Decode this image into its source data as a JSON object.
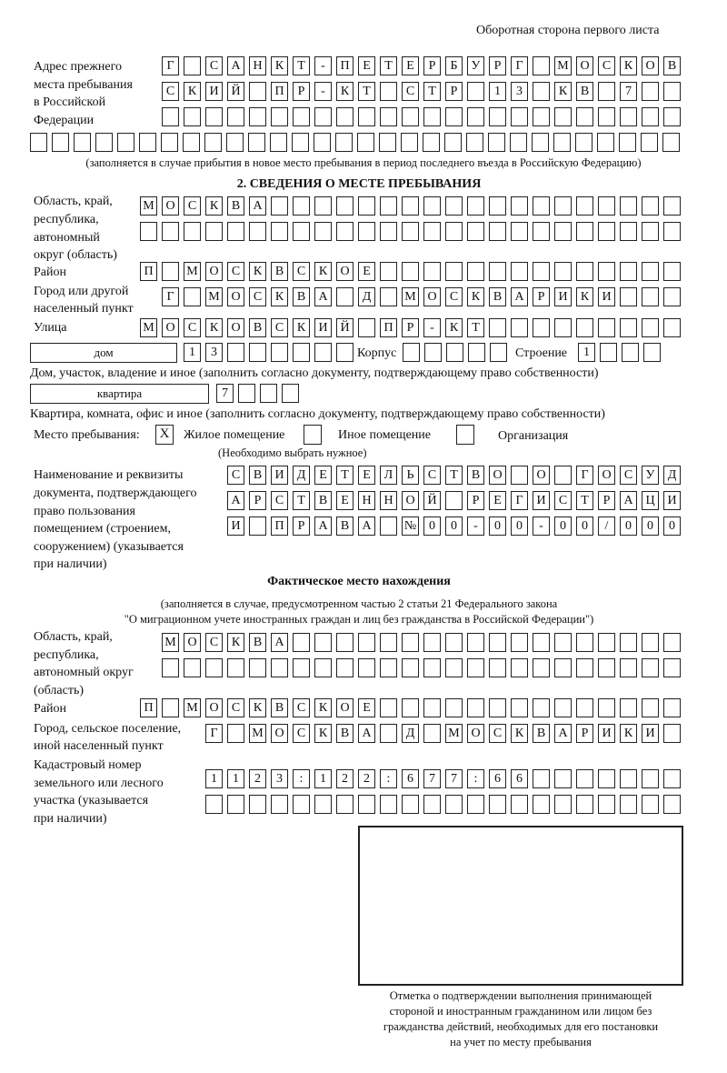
{
  "header": "Оборотная сторона первого листа",
  "prev_address": {
    "label": [
      "Адрес прежнего",
      "места пребывания",
      "в Российской",
      "Федерации"
    ],
    "rows": [
      [
        "Г",
        "",
        "С",
        "А",
        "Н",
        "К",
        "Т",
        "-",
        "П",
        "Е",
        "Т",
        "Е",
        "Р",
        "Б",
        "У",
        "Р",
        "Г",
        "",
        "М",
        "О",
        "С",
        "К",
        "О",
        "В"
      ],
      [
        "С",
        "К",
        "И",
        "Й",
        "",
        "П",
        "Р",
        "-",
        "К",
        "Т",
        "",
        "С",
        "Т",
        "Р",
        "",
        "1",
        "3",
        "",
        "К",
        "В",
        "",
        "7",
        "",
        ""
      ],
      [
        "",
        "",
        "",
        "",
        "",
        "",
        "",
        "",
        "",
        "",
        "",
        "",
        "",
        "",
        "",
        "",
        "",
        "",
        "",
        "",
        "",
        "",
        "",
        ""
      ],
      [
        "",
        "",
        "",
        "",
        "",
        "",
        "",
        "",
        "",
        "",
        "",
        "",
        "",
        "",
        "",
        "",
        "",
        "",
        "",
        "",
        "",
        "",
        "",
        "",
        "",
        "",
        "",
        "",
        "",
        ""
      ]
    ],
    "note": "(заполняется в случае прибытия в новое место пребывания в период последнего въезда в Российскую Федерацию)"
  },
  "section2": {
    "title": "2. СВЕДЕНИЯ О МЕСТЕ ПРЕБЫВАНИЯ",
    "region": {
      "label": [
        "Область, край,",
        "республика,",
        "автономный",
        "округ (область)"
      ],
      "rows": [
        [
          "М",
          "О",
          "С",
          "К",
          "В",
          "А",
          "",
          "",
          "",
          "",
          "",
          "",
          "",
          "",
          "",
          "",
          "",
          "",
          "",
          "",
          "",
          "",
          "",
          "",
          ""
        ],
        [
          "",
          "",
          "",
          "",
          "",
          "",
          "",
          "",
          "",
          "",
          "",
          "",
          "",
          "",
          "",
          "",
          "",
          "",
          "",
          "",
          "",
          "",
          "",
          "",
          ""
        ]
      ]
    },
    "district": {
      "label": "Район",
      "row": [
        "П",
        "",
        "М",
        "О",
        "С",
        "К",
        "В",
        "С",
        "К",
        "О",
        "Е",
        "",
        "",
        "",
        "",
        "",
        "",
        "",
        "",
        "",
        "",
        "",
        "",
        "",
        ""
      ]
    },
    "city": {
      "label": [
        "Город или другой",
        "населенный пункт"
      ],
      "row": [
        "Г",
        "",
        "М",
        "О",
        "С",
        "К",
        "В",
        "А",
        "",
        "Д",
        "",
        "М",
        "О",
        "С",
        "К",
        "В",
        "А",
        "Р",
        "И",
        "К",
        "И",
        "",
        "",
        ""
      ]
    },
    "street": {
      "label": "Улица",
      "row": [
        "М",
        "О",
        "С",
        "К",
        "О",
        "В",
        "С",
        "К",
        "И",
        "Й",
        "",
        "П",
        "Р",
        "-",
        "К",
        "Т",
        "",
        "",
        "",
        "",
        "",
        "",
        "",
        "",
        ""
      ]
    },
    "house": {
      "type": "дом",
      "row": [
        "1",
        "3",
        "",
        "",
        "",
        "",
        "",
        ""
      ],
      "korpus_label": "Корпус",
      "korpus": [
        "",
        "",
        "",
        "",
        ""
      ],
      "building_label": "Строение",
      "building": [
        "1",
        "",
        "",
        ""
      ],
      "note": "Дом, участок, владение и иное (заполнить согласно документу, подтверждающему право собственности)"
    },
    "apartment": {
      "type": "квартира",
      "row": [
        "7",
        "",
        "",
        ""
      ],
      "note": "Квартира, комната, офис и иное (заполнить согласно документу, подтверждающему право собственности)"
    },
    "stay_place": {
      "label": "Место пребывания:",
      "options": [
        {
          "label": "Жилое помещение",
          "mark": "X"
        },
        {
          "label": "Иное помещение",
          "mark": ""
        },
        {
          "label": "Организация",
          "mark": ""
        }
      ],
      "hint": "(Необходимо выбрать нужное)"
    },
    "document": {
      "label": [
        "Наименование и реквизиты",
        "документа, подтверждающего",
        "право пользования",
        "помещением (строением,",
        "сооружением) (указывается",
        "при наличии)"
      ],
      "rows": [
        [
          "С",
          "В",
          "И",
          "Д",
          "Е",
          "Т",
          "Е",
          "Л",
          "Ь",
          "С",
          "Т",
          "В",
          "О",
          "",
          "О",
          "",
          "Г",
          "О",
          "С",
          "У",
          "Д"
        ],
        [
          "А",
          "Р",
          "С",
          "Т",
          "В",
          "Е",
          "Н",
          "Н",
          "О",
          "Й",
          "",
          "Р",
          "Е",
          "Г",
          "И",
          "С",
          "Т",
          "Р",
          "А",
          "Ц",
          "И"
        ],
        [
          "И",
          "",
          "П",
          "Р",
          "А",
          "В",
          "А",
          "",
          "№",
          "0",
          "0",
          "-",
          "0",
          "0",
          "-",
          "0",
          "0",
          "/",
          "0",
          "0",
          "0"
        ]
      ]
    }
  },
  "actual": {
    "title": "Фактическое место нахождения",
    "note": [
      "(заполняется в случае, предусмотренном частью 2 статьи 21 Федерального закона",
      "\"О миграционном учете иностранных граждан и лиц без гражданства в Российской Федерации\")"
    ],
    "region": {
      "label": [
        "Область, край,",
        "республика,",
        "автономный округ",
        "(область)"
      ],
      "rows": [
        [
          "М",
          "О",
          "С",
          "К",
          "В",
          "А",
          "",
          "",
          "",
          "",
          "",
          "",
          "",
          "",
          "",
          "",
          "",
          "",
          "",
          "",
          "",
          "",
          "",
          ""
        ],
        [
          "",
          "",
          "",
          "",
          "",
          "",
          "",
          "",
          "",
          "",
          "",
          "",
          "",
          "",
          "",
          "",
          "",
          "",
          "",
          "",
          "",
          "",
          "",
          ""
        ]
      ]
    },
    "district": {
      "label": "Район",
      "row": [
        "П",
        "",
        "М",
        "О",
        "С",
        "К",
        "В",
        "С",
        "К",
        "О",
        "Е",
        "",
        "",
        "",
        "",
        "",
        "",
        "",
        "",
        "",
        "",
        "",
        "",
        "",
        ""
      ]
    },
    "city": {
      "label": [
        "Город, сельское поселение,",
        "иной населенный пункт"
      ],
      "row": [
        "Г",
        "",
        "М",
        "О",
        "С",
        "К",
        "В",
        "А",
        "",
        "Д",
        "",
        "М",
        "О",
        "С",
        "К",
        "В",
        "А",
        "Р",
        "И",
        "К",
        "И",
        ""
      ]
    },
    "cadastre": {
      "label": [
        "Кадастровый номер",
        "земельного или лесного",
        "участка (указывается",
        "при наличии)"
      ],
      "rows": [
        [
          "1",
          "1",
          "2",
          "3",
          ":",
          "1",
          "2",
          "2",
          ":",
          "6",
          "7",
          "7",
          ":",
          "6",
          "6",
          "",
          "",
          "",
          "",
          "",
          "",
          ""
        ],
        [
          "",
          "",
          "",
          "",
          "",
          "",
          "",
          "",
          "",
          "",
          "",
          "",
          "",
          "",
          "",
          "",
          "",
          "",
          "",
          "",
          "",
          ""
        ]
      ]
    }
  },
  "stamp_caption": [
    "Отметка о подтверждении выполнения принимающей",
    "стороной и иностранным гражданином или лицом без",
    "гражданства действий, необходимых для его постановки",
    "на учет по месту пребывания"
  ]
}
